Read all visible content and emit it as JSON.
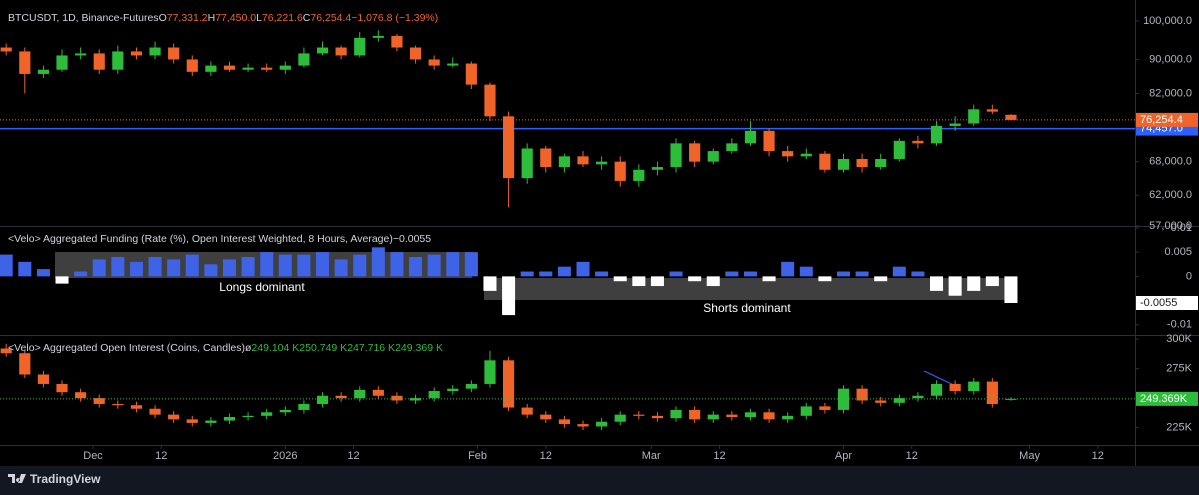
{
  "chart_data": [
    {
      "type": "candlestick",
      "legend": {
        "title": "BTCUSDT, 1D, Binance-Futures",
        "items": [
          {
            "key": "O",
            "value": "77,331.2"
          },
          {
            "key": "H",
            "value": "77,450.0"
          },
          {
            "key": "L",
            "value": "76,221.6"
          },
          {
            "key": "C",
            "value": "76,254.4"
          }
        ],
        "change": "−1,076.8 (−1.39%)"
      },
      "x": [
        "2025-11-17",
        "2025-11-20",
        "2025-11-23",
        "2025-11-26",
        "2025-11-29",
        "2025-12-02",
        "2025-12-05",
        "2025-12-08",
        "2025-12-11",
        "2025-12-14",
        "2025-12-17",
        "2025-12-20",
        "2025-12-23",
        "2025-12-26",
        "2025-12-29",
        "2026-01-01",
        "2026-01-04",
        "2026-01-07",
        "2026-01-10",
        "2026-01-13",
        "2026-01-16",
        "2026-01-19",
        "2026-01-22",
        "2026-01-25",
        "2026-01-28",
        "2026-01-31",
        "2026-02-03",
        "2026-02-06",
        "2026-02-09",
        "2026-02-12",
        "2026-02-15",
        "2026-02-18",
        "2026-02-21",
        "2026-02-24",
        "2026-02-27",
        "2026-03-02",
        "2026-03-05",
        "2026-03-08",
        "2026-03-11",
        "2026-03-14",
        "2026-03-17",
        "2026-03-20",
        "2026-03-23",
        "2026-03-26",
        "2026-03-29",
        "2026-04-01",
        "2026-04-04",
        "2026-04-07",
        "2026-04-10",
        "2026-04-13",
        "2026-04-16",
        "2026-04-19",
        "2026-04-22",
        "2026-04-25",
        "2026-04-28"
      ],
      "open": [
        93000,
        92000,
        86500,
        87500,
        91000,
        91500,
        87500,
        92000,
        91000,
        93000,
        90000,
        87000,
        88500,
        87500,
        88000,
        87500,
        88500,
        91500,
        93000,
        91000,
        95500,
        96000,
        93000,
        90000,
        88500,
        89000,
        84000,
        77000,
        65000,
        70500,
        67000,
        69000,
        67500,
        68000,
        64500,
        66500,
        67000,
        71500,
        68000,
        70000,
        71500,
        74000,
        70000,
        69000,
        69500,
        66500,
        68500,
        67000,
        68500,
        72000,
        71500,
        75000,
        75500,
        78500,
        77331.2
      ],
      "high": [
        94000,
        93000,
        88500,
        92500,
        93000,
        92500,
        93500,
        93000,
        94500,
        94000,
        91000,
        89500,
        89500,
        89000,
        89000,
        89500,
        93000,
        94500,
        93500,
        97000,
        97500,
        96500,
        93500,
        91000,
        90500,
        89500,
        84500,
        78000,
        71500,
        71000,
        69500,
        70000,
        69000,
        69000,
        67500,
        68000,
        72500,
        72000,
        70500,
        72500,
        76000,
        74500,
        71000,
        70500,
        70000,
        69500,
        69500,
        69500,
        72500,
        73000,
        76000,
        77000,
        79500,
        79500,
        77450
      ],
      "low": [
        91000,
        82000,
        85500,
        87000,
        90000,
        86500,
        86500,
        90000,
        90000,
        89000,
        86000,
        86000,
        87000,
        87000,
        87000,
        86500,
        88000,
        91000,
        90000,
        90500,
        94500,
        92000,
        89000,
        87500,
        88000,
        83000,
        76000,
        60000,
        64000,
        66000,
        66000,
        67000,
        66500,
        63500,
        63500,
        65500,
        66000,
        67000,
        67500,
        69500,
        71000,
        69000,
        68000,
        68500,
        66000,
        66000,
        66000,
        66500,
        68000,
        70500,
        71000,
        74000,
        75000,
        77500,
        76221.6
      ],
      "close": [
        92000,
        86500,
        87500,
        91000,
        91500,
        87500,
        92000,
        91000,
        93000,
        90000,
        87000,
        88500,
        87500,
        88000,
        87500,
        88500,
        91500,
        93000,
        91000,
        95500,
        96000,
        93000,
        90000,
        88500,
        89000,
        84000,
        77000,
        65000,
        70500,
        67000,
        69000,
        67500,
        68000,
        64500,
        66500,
        67000,
        71500,
        68000,
        70000,
        71500,
        74000,
        70000,
        69000,
        69500,
        66500,
        68500,
        67000,
        68500,
        72000,
        71500,
        75000,
        75500,
        78500,
        78000,
        76254.4
      ],
      "up_color": "#2ebd3a",
      "down_color": "#f0642a",
      "xlim": [
        "2025-11-16",
        "2026-05-18"
      ],
      "ylim": [
        57000,
        104500
      ],
      "log_scale": true,
      "grid": false,
      "yticks": [
        {
          "value": 57000,
          "label": "57,000.0"
        },
        {
          "value": 62000,
          "label": "62,000.0"
        },
        {
          "value": 68000,
          "label": "68,000.0"
        },
        {
          "value": 82000,
          "label": "82,000.0"
        },
        {
          "value": 90000,
          "label": "90,000.0"
        },
        {
          "value": 100000,
          "label": "100,000.0"
        }
      ],
      "last_value_label": "76,254.4",
      "price_line": {
        "value": 74457,
        "label": "74,457.0",
        "color": "#2962ff"
      }
    },
    {
      "type": "bar",
      "legend": {
        "title": "<Velo> Aggregated Funding (Rate (%), Open Interest Weighted, 8 Hours, Average)",
        "value": "−0.0055"
      },
      "x": [
        "2025-11-17",
        "2025-11-20",
        "2025-11-23",
        "2025-11-26",
        "2025-11-29",
        "2025-12-02",
        "2025-12-05",
        "2025-12-08",
        "2025-12-11",
        "2025-12-14",
        "2025-12-17",
        "2025-12-20",
        "2025-12-23",
        "2025-12-26",
        "2025-12-29",
        "2026-01-01",
        "2026-01-04",
        "2026-01-07",
        "2026-01-10",
        "2026-01-13",
        "2026-01-16",
        "2026-01-19",
        "2026-01-22",
        "2026-01-25",
        "2026-01-28",
        "2026-01-31",
        "2026-02-03",
        "2026-02-06",
        "2026-02-09",
        "2026-02-12",
        "2026-02-15",
        "2026-02-18",
        "2026-02-21",
        "2026-02-24",
        "2026-02-27",
        "2026-03-02",
        "2026-03-05",
        "2026-03-08",
        "2026-03-11",
        "2026-03-14",
        "2026-03-17",
        "2026-03-20",
        "2026-03-23",
        "2026-03-26",
        "2026-03-29",
        "2026-04-01",
        "2026-04-04",
        "2026-04-07",
        "2026-04-10",
        "2026-04-13",
        "2026-04-16",
        "2026-04-19",
        "2026-04-22",
        "2026-04-25",
        "2026-04-28"
      ],
      "values": [
        0.0045,
        0.003,
        0.0015,
        -0.0015,
        0.001,
        0.0035,
        0.004,
        0.003,
        0.004,
        0.0035,
        0.0045,
        0.0025,
        0.0035,
        0.004,
        0.005,
        0.0045,
        0.0045,
        0.005,
        0.0035,
        0.0045,
        0.006,
        0.005,
        0.004,
        0.0045,
        0.005,
        0.005,
        -0.003,
        -0.008,
        0.001,
        0.001,
        0.002,
        0.003,
        0.001,
        -0.001,
        -0.002,
        -0.002,
        0.001,
        -0.001,
        -0.002,
        0.001,
        0.001,
        -0.001,
        0.003,
        0.002,
        -0.001,
        0.001,
        0.001,
        -0.001,
        0.002,
        0.001,
        -0.003,
        -0.004,
        -0.003,
        -0.002,
        -0.0055
      ],
      "positive_color": "#3f63e6",
      "negative_color": "#ffffff",
      "xlim": [
        "2025-11-16",
        "2026-05-18"
      ],
      "ylim": [
        -0.0117,
        0.0102
      ],
      "grid": false,
      "yticks": [
        -0.01,
        0,
        0.005,
        0.01
      ],
      "last_value_label": "-0.0055",
      "annotations": [
        "Longs dominant",
        "Shorts dominant"
      ]
    },
    {
      "type": "candlestick",
      "legend": {
        "title": "<Velo> Aggregated Open Interest (Coins, Candles)",
        "symbol": "ø",
        "values": [
          "249.104 K",
          "250.749 K",
          "247.716 K",
          "249.369 K"
        ]
      },
      "x": [
        "2025-11-17",
        "2025-11-20",
        "2025-11-23",
        "2025-11-26",
        "2025-11-29",
        "2025-12-02",
        "2025-12-05",
        "2025-12-08",
        "2025-12-11",
        "2025-12-14",
        "2025-12-17",
        "2025-12-20",
        "2025-12-23",
        "2025-12-26",
        "2025-12-29",
        "2026-01-01",
        "2026-01-04",
        "2026-01-07",
        "2026-01-10",
        "2026-01-13",
        "2026-01-16",
        "2026-01-19",
        "2026-01-22",
        "2026-01-25",
        "2026-01-28",
        "2026-01-31",
        "2026-02-03",
        "2026-02-06",
        "2026-02-09",
        "2026-02-12",
        "2026-02-15",
        "2026-02-18",
        "2026-02-21",
        "2026-02-24",
        "2026-02-27",
        "2026-03-02",
        "2026-03-05",
        "2026-03-08",
        "2026-03-11",
        "2026-03-14",
        "2026-03-17",
        "2026-03-20",
        "2026-03-23",
        "2026-03-26",
        "2026-03-29",
        "2026-04-01",
        "2026-04-04",
        "2026-04-07",
        "2026-04-10",
        "2026-04-13",
        "2026-04-16",
        "2026-04-19",
        "2026-04-22",
        "2026-04-25",
        "2026-04-28"
      ],
      "open": [
        292000,
        288000,
        270000,
        262000,
        255000,
        250000,
        245000,
        244000,
        241000,
        236000,
        232000,
        229000,
        231000,
        234000,
        235000,
        238000,
        240000,
        245000,
        252000,
        250000,
        257000,
        252000,
        248000,
        250000,
        256000,
        258000,
        262000,
        282000,
        242000,
        236000,
        232000,
        228000,
        226000,
        230000,
        236000,
        235000,
        233000,
        240000,
        232000,
        236000,
        234000,
        238000,
        232000,
        235000,
        243000,
        240000,
        258000,
        248000,
        246000,
        250000,
        252000,
        262000,
        256000,
        264000,
        249104
      ],
      "high": [
        296000,
        291000,
        273000,
        265000,
        258000,
        253000,
        248000,
        247000,
        244000,
        239000,
        235000,
        234000,
        237000,
        238000,
        241000,
        243000,
        248000,
        255000,
        255000,
        260000,
        260000,
        255000,
        253000,
        259000,
        261000,
        265000,
        290000,
        285000,
        245000,
        239000,
        235000,
        231000,
        233000,
        239000,
        239000,
        238000,
        243000,
        243000,
        239000,
        239000,
        241000,
        241000,
        238000,
        246000,
        246000,
        261000,
        261000,
        251000,
        253000,
        255000,
        265000,
        265000,
        267000,
        267000,
        250749
      ],
      "low": [
        285000,
        267000,
        259000,
        252000,
        247000,
        242000,
        241000,
        238000,
        233000,
        229000,
        226000,
        226000,
        228000,
        231000,
        232000,
        235000,
        237000,
        242000,
        247000,
        247000,
        249000,
        245000,
        245000,
        247000,
        253000,
        255000,
        259000,
        239000,
        233000,
        229000,
        225000,
        223000,
        223000,
        227000,
        232000,
        230000,
        230000,
        229000,
        229000,
        231000,
        231000,
        229000,
        229000,
        232000,
        237000,
        237000,
        245000,
        243000,
        243000,
        247000,
        249000,
        253000,
        253000,
        242000,
        247716
      ],
      "close": [
        288000,
        270000,
        262000,
        255000,
        250000,
        245000,
        244000,
        241000,
        236000,
        232000,
        229000,
        231000,
        234000,
        235000,
        238000,
        240000,
        245000,
        252000,
        250000,
        257000,
        252000,
        248000,
        250000,
        256000,
        258000,
        262000,
        282000,
        242000,
        236000,
        232000,
        228000,
        226000,
        230000,
        236000,
        235000,
        233000,
        240000,
        232000,
        236000,
        234000,
        238000,
        232000,
        235000,
        243000,
        240000,
        258000,
        248000,
        246000,
        250000,
        252000,
        262000,
        256000,
        264000,
        245000,
        249369
      ],
      "up_color": "#2ebd3a",
      "down_color": "#f0642a",
      "xlim": [
        "2025-11-16",
        "2026-05-18"
      ],
      "ylim": [
        210300,
        302600
      ],
      "grid": false,
      "yticks": [
        {
          "value": 225000,
          "label": "225K"
        },
        {
          "value": 275000,
          "label": "275K"
        },
        {
          "value": 300000,
          "label": "300K"
        }
      ],
      "last_value_label": "249.369K",
      "xticks": [
        {
          "value": "2025-12-01",
          "label": "Dec"
        },
        {
          "value": "2025-12-12",
          "label": "12"
        },
        {
          "value": "2026-01-01",
          "label": "2026"
        },
        {
          "value": "2026-01-12",
          "label": "12"
        },
        {
          "value": "2026-02-01",
          "label": "Feb"
        },
        {
          "value": "2026-02-12",
          "label": "12"
        },
        {
          "value": "2026-03-01",
          "label": "Mar"
        },
        {
          "value": "2026-03-12",
          "label": "12"
        },
        {
          "value": "2026-04-01",
          "label": "Apr"
        },
        {
          "value": "2026-04-12",
          "label": "12"
        },
        {
          "value": "2026-05-01",
          "label": "May"
        },
        {
          "value": "2026-05-12",
          "label": "12"
        }
      ]
    }
  ],
  "footer": {
    "brand": "TradingView"
  }
}
